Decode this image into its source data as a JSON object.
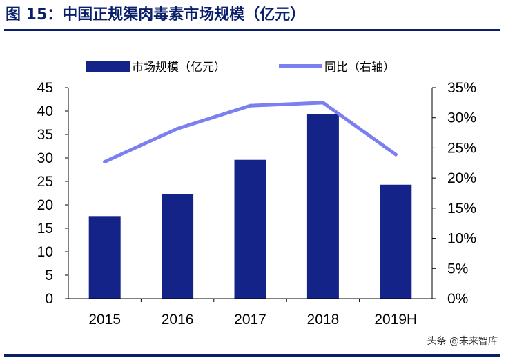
{
  "title": "图 15：中国正规渠肉毒素市场规模（亿元）",
  "watermark": "头条 @未来智库",
  "colors": {
    "bar": "#142387",
    "line": "#7b7ff0",
    "title": "#0a1f6b"
  },
  "chart_data": {
    "type": "bar+line",
    "categories": [
      "2015",
      "2016",
      "2017",
      "2018",
      "2019H"
    ],
    "series": [
      {
        "name": "市场规模（亿元）",
        "type": "bar",
        "axis": "left",
        "values": [
          17.6,
          22.3,
          29.6,
          39.3,
          24.3
        ]
      },
      {
        "name": "同比（右轴）",
        "type": "line",
        "axis": "right",
        "values": [
          22.7,
          28.2,
          32.0,
          32.5,
          23.9
        ]
      }
    ],
    "y_left": {
      "ylim": [
        0,
        45
      ],
      "ticks": [
        "0",
        "5",
        "10",
        "15",
        "20",
        "25",
        "30",
        "35",
        "40",
        "45"
      ]
    },
    "y_right": {
      "ylim": [
        0,
        35
      ],
      "ticks": [
        "0%",
        "5%",
        "10%",
        "15%",
        "20%",
        "25%",
        "30%",
        "35%"
      ]
    },
    "legend_position": "top",
    "grid": false
  }
}
